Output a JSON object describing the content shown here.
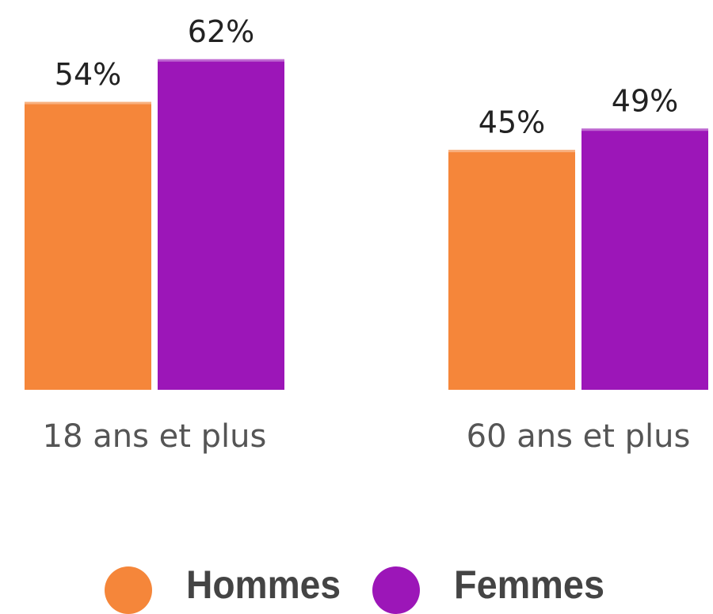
{
  "chart_data": {
    "type": "bar",
    "categories": [
      "18 ans et plus",
      "60 ans et plus"
    ],
    "series": [
      {
        "name": "Hommes",
        "color": "#f5863a",
        "values": [
          54,
          45
        ],
        "value_labels": [
          "54%",
          "45%"
        ]
      },
      {
        "name": "Femmes",
        "color": "#9c16b8",
        "values": [
          62,
          49
        ],
        "value_labels": [
          "62%",
          "49%"
        ]
      }
    ]
  }
}
